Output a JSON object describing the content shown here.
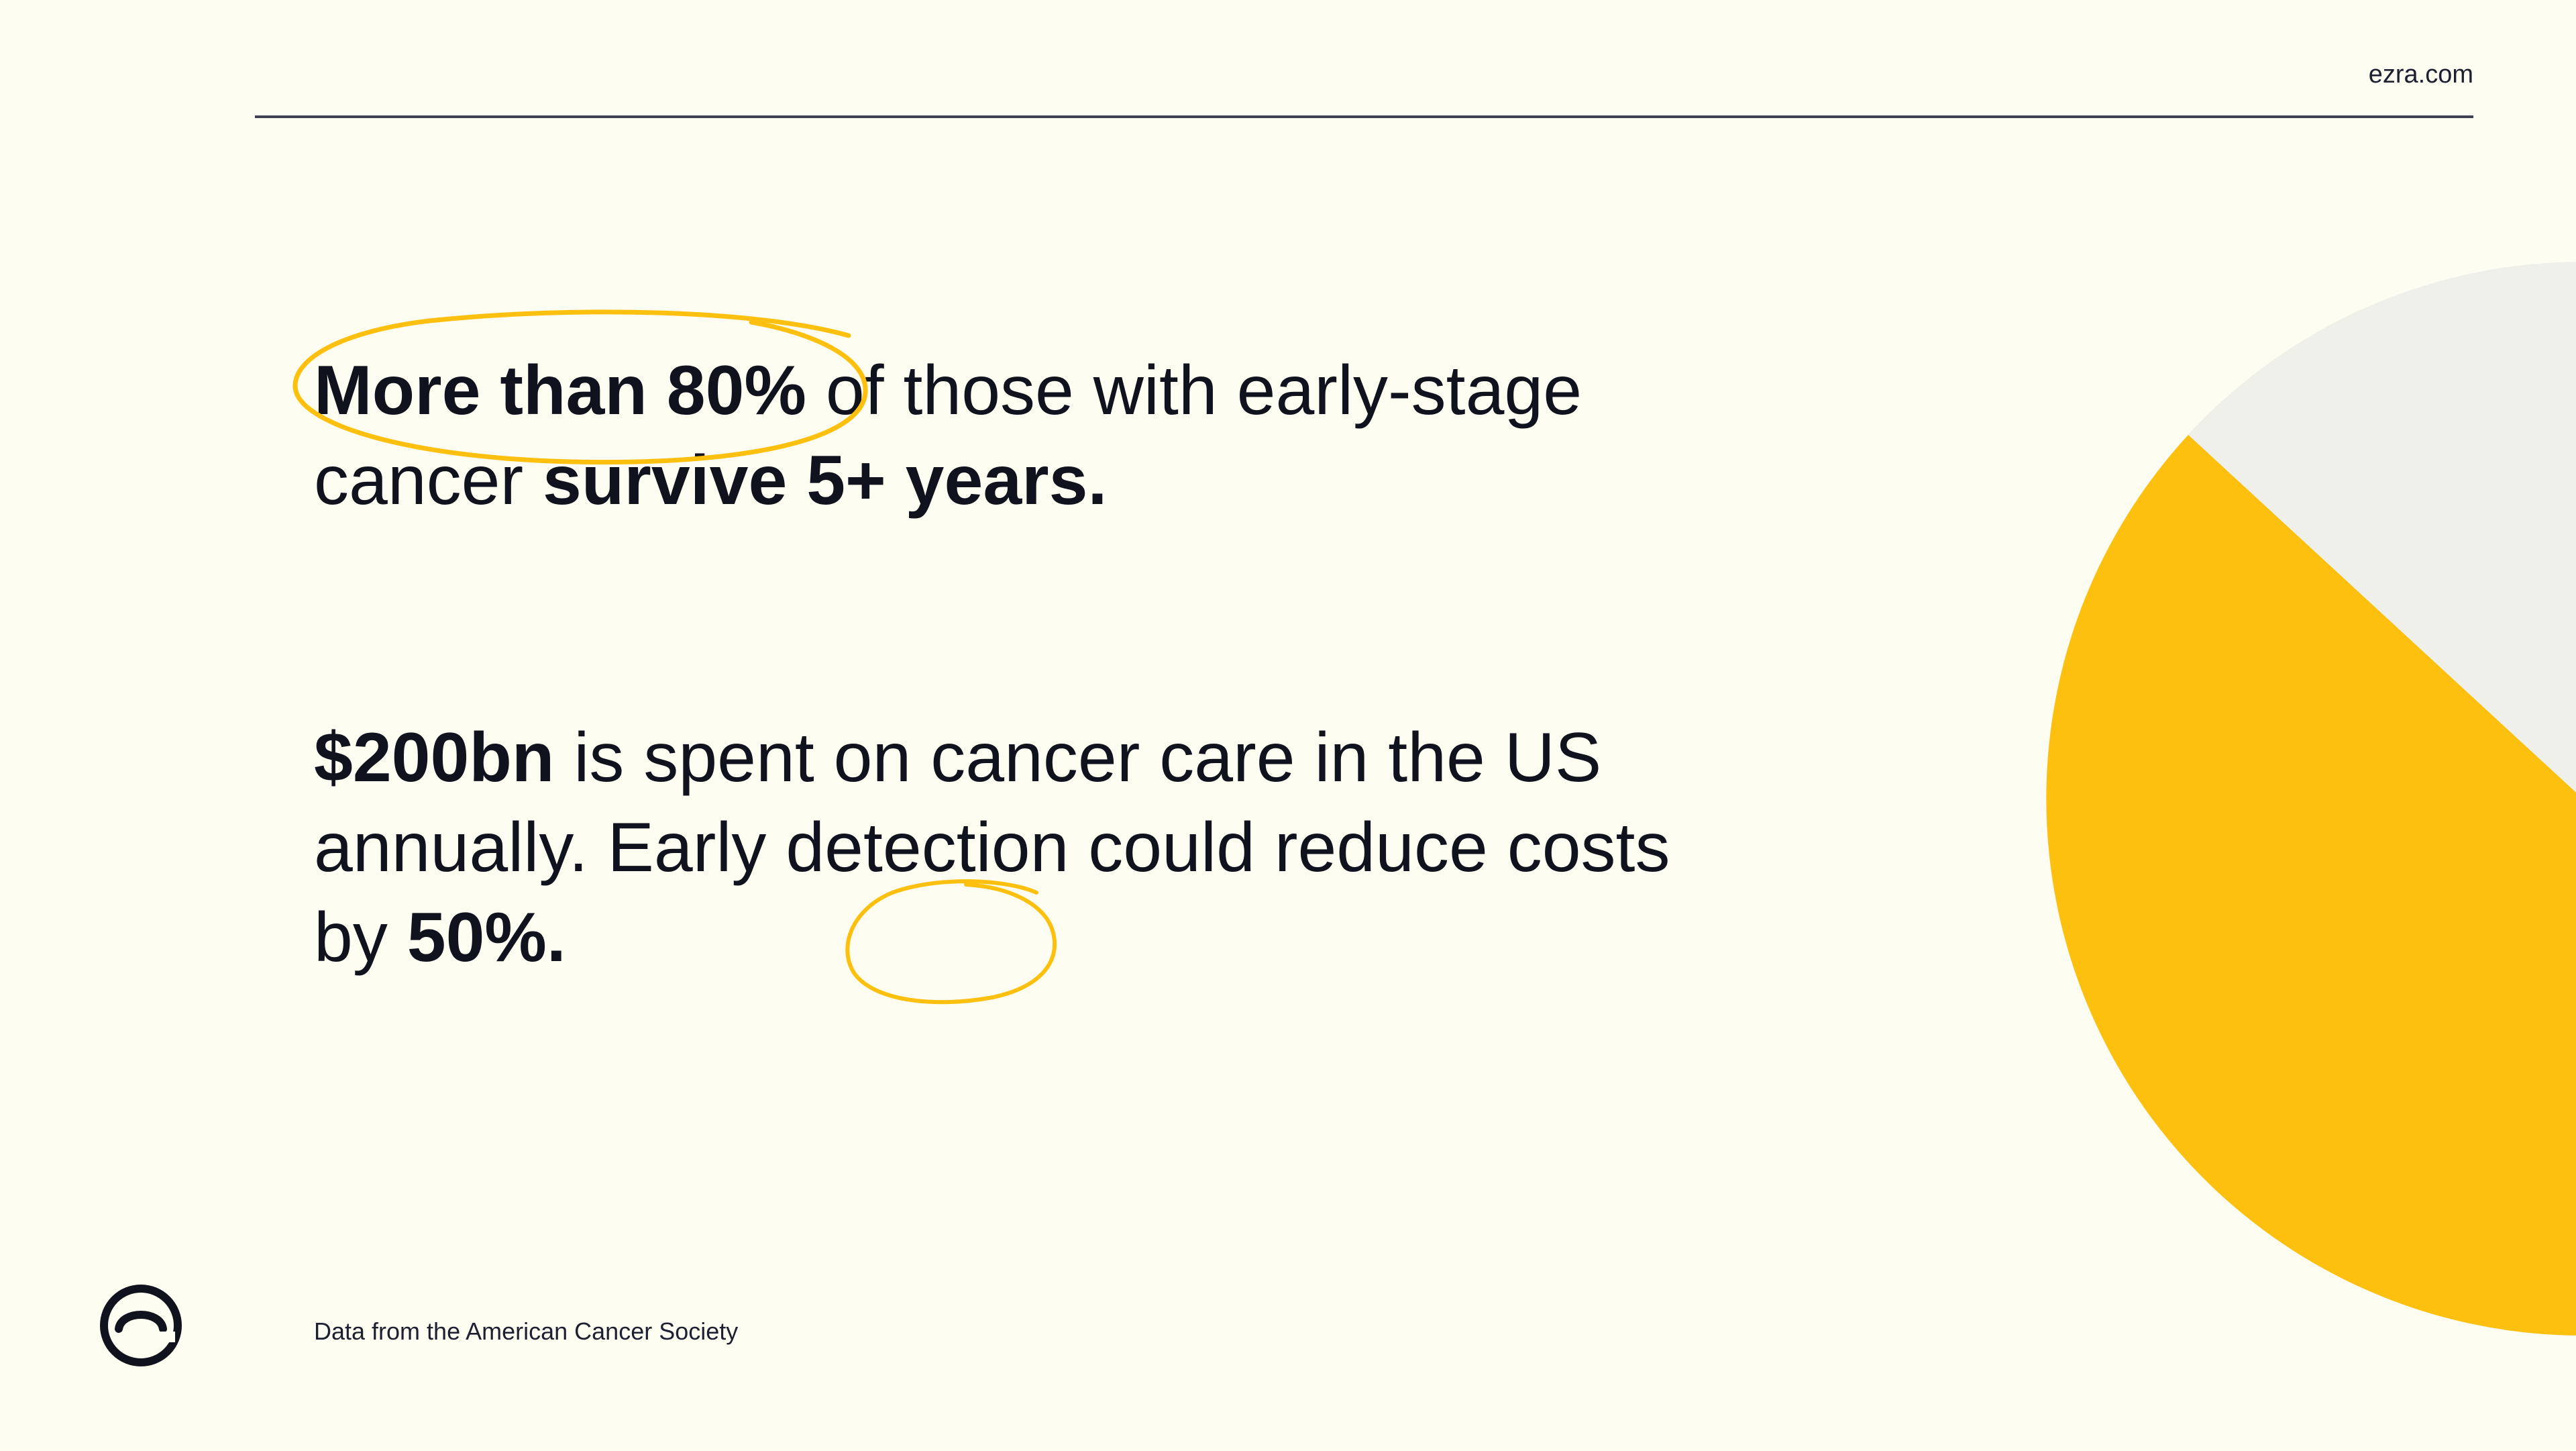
{
  "header": {
    "site_link": "ezra.com"
  },
  "stats": [
    {
      "highlight": "More than 80%",
      "text_1": " of those with early-stage cancer ",
      "bold_2": "survive 5+ years."
    },
    {
      "bold_1": "$200bn",
      "text_1": " is spent on cancer care in the US annually. Early detection could reduce costs by ",
      "highlight": "50%."
    }
  ],
  "footer": {
    "source": "Data from the American Cancer Society",
    "logo_icon": "ezra-logo-icon"
  },
  "colors": {
    "background": "#fdfdf1",
    "accent_yellow": "#fdc00f",
    "pie_light": "#f0f0ea",
    "text": "#10131e"
  },
  "pie_decoration": {
    "slices": [
      {
        "name": "yellow",
        "color": "#fdc00f",
        "fraction": 0.62
      },
      {
        "name": "light-gray",
        "color": "#f0f0ea",
        "fraction": 0.38
      }
    ]
  }
}
